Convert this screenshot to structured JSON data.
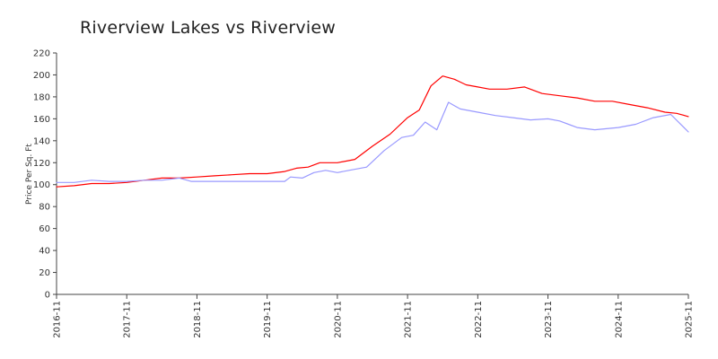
{
  "chart_data": {
    "type": "line",
    "title": "Riverview Lakes vs Riverview",
    "xlabel": "",
    "ylabel": "Price Per Sq. Ft",
    "ylim": [
      0,
      220
    ],
    "yticks": [
      0,
      20,
      40,
      60,
      80,
      100,
      120,
      140,
      160,
      180,
      200,
      220
    ],
    "xlim": [
      "2016-11",
      "2025-11"
    ],
    "xticks": [
      "2016-11",
      "2017-11",
      "2018-11",
      "2019-11",
      "2020-11",
      "2021-11",
      "2022-11",
      "2023-11",
      "2024-11",
      "2025-11"
    ],
    "grid": false,
    "legend": "none",
    "series": [
      {
        "color": "#ff0000",
        "points": [
          [
            "2016-11",
            98
          ],
          [
            "2017-02",
            99
          ],
          [
            "2017-05",
            101
          ],
          [
            "2017-08",
            101
          ],
          [
            "2017-11",
            102
          ],
          [
            "2018-02",
            104
          ],
          [
            "2018-05",
            106
          ],
          [
            "2018-08",
            106
          ],
          [
            "2018-11",
            107
          ],
          [
            "2019-02",
            108
          ],
          [
            "2019-05",
            109
          ],
          [
            "2019-08",
            110
          ],
          [
            "2019-11",
            110
          ],
          [
            "2020-02",
            112
          ],
          [
            "2020-04",
            115
          ],
          [
            "2020-06",
            116
          ],
          [
            "2020-08",
            120
          ],
          [
            "2020-11",
            120
          ],
          [
            "2021-02",
            123
          ],
          [
            "2021-05",
            135
          ],
          [
            "2021-08",
            146
          ],
          [
            "2021-11",
            161
          ],
          [
            "2022-01",
            168
          ],
          [
            "2022-03",
            190
          ],
          [
            "2022-05",
            199
          ],
          [
            "2022-07",
            196
          ],
          [
            "2022-09",
            191
          ],
          [
            "2022-11",
            189
          ],
          [
            "2023-01",
            187
          ],
          [
            "2023-04",
            187
          ],
          [
            "2023-07",
            189
          ],
          [
            "2023-10",
            183
          ],
          [
            "2024-01",
            181
          ],
          [
            "2024-04",
            179
          ],
          [
            "2024-07",
            176
          ],
          [
            "2024-10",
            176
          ],
          [
            "2025-01",
            173
          ],
          [
            "2025-04",
            170
          ],
          [
            "2025-07",
            166
          ],
          [
            "2025-09",
            165
          ],
          [
            "2025-11",
            162
          ]
        ]
      },
      {
        "color": "#9999ff",
        "points": [
          [
            "2016-11",
            102
          ],
          [
            "2017-02",
            102
          ],
          [
            "2017-05",
            104
          ],
          [
            "2017-08",
            103
          ],
          [
            "2017-11",
            103
          ],
          [
            "2018-02",
            104
          ],
          [
            "2018-05",
            104
          ],
          [
            "2018-08",
            106
          ],
          [
            "2018-10",
            103
          ],
          [
            "2019-02",
            103
          ],
          [
            "2019-05",
            103
          ],
          [
            "2019-08",
            103
          ],
          [
            "2019-11",
            103
          ],
          [
            "2020-02",
            103
          ],
          [
            "2020-03",
            107
          ],
          [
            "2020-05",
            106
          ],
          [
            "2020-07",
            111
          ],
          [
            "2020-09",
            113
          ],
          [
            "2020-11",
            111
          ],
          [
            "2021-01",
            113
          ],
          [
            "2021-04",
            116
          ],
          [
            "2021-07",
            131
          ],
          [
            "2021-10",
            143
          ],
          [
            "2021-12",
            145
          ],
          [
            "2022-02",
            157
          ],
          [
            "2022-04",
            150
          ],
          [
            "2022-06",
            175
          ],
          [
            "2022-08",
            169
          ],
          [
            "2022-11",
            166
          ],
          [
            "2023-02",
            163
          ],
          [
            "2023-05",
            161
          ],
          [
            "2023-08",
            159
          ],
          [
            "2023-11",
            160
          ],
          [
            "2024-01",
            158
          ],
          [
            "2024-04",
            152
          ],
          [
            "2024-07",
            150
          ],
          [
            "2024-11",
            152
          ],
          [
            "2025-02",
            155
          ],
          [
            "2025-05",
            161
          ],
          [
            "2025-08",
            164
          ],
          [
            "2025-11",
            148
          ]
        ]
      }
    ]
  }
}
